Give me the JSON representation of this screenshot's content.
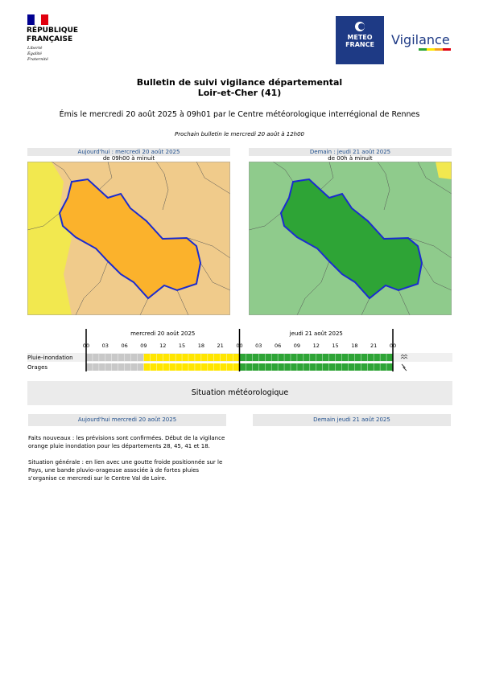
{
  "header": {
    "republique": [
      "RÉPUBLIQUE",
      "FRANÇAISE"
    ],
    "devise": [
      "Liberté",
      "Égalité",
      "Fraternité"
    ],
    "meteo": [
      "METEO",
      "FRANCE"
    ],
    "vigilance": "Vigilance"
  },
  "title": [
    "Bulletin de suivi vigilance départemental",
    "Loir-et-Cher (41)"
  ],
  "emitted": "Émis le mercredi 20 août 2025 à 09h01 par le Centre météorologique interrégional de Rennes",
  "next_bulletin": "Prochain bulletin le mercredi 20 août à 12h00",
  "maps": [
    {
      "title": "Aujourd'hui : mercredi 20 août 2025",
      "period": "de 09h00 à minuit",
      "background": "#f0cb8b",
      "department": "#fbb22c",
      "corner": "#f2e84f"
    },
    {
      "title": "Demain : jeudi 21 août 2025",
      "period": "de 00h à minuit",
      "background": "#8fcb8c",
      "department": "#2ea436",
      "corner": "#f2e84f"
    }
  ],
  "timeline": {
    "days": [
      "mercredi 20 août 2025",
      "jeudi 21 août 2025"
    ],
    "hours": [
      "00",
      "03",
      "06",
      "09",
      "12",
      "15",
      "18",
      "21",
      "00",
      "03",
      "06",
      "09",
      "12",
      "15",
      "18",
      "21",
      "00"
    ],
    "range": [
      0,
      48
    ],
    "rows": [
      {
        "label": "Pluie-inondation",
        "segments": [
          {
            "from": 0,
            "to": 9,
            "color": "#c8c8c8"
          },
          {
            "from": 9,
            "to": 24,
            "color": "#ffe600"
          },
          {
            "from": 24,
            "to": 48,
            "color": "#2ea436"
          }
        ]
      },
      {
        "label": "Orages",
        "segments": [
          {
            "from": 0,
            "to": 9,
            "color": "#c8c8c8"
          },
          {
            "from": 9,
            "to": 24,
            "color": "#ffe600"
          },
          {
            "from": 24,
            "to": 48,
            "color": "#2ea436"
          }
        ]
      }
    ]
  },
  "situation": {
    "title": "Situation météorologique",
    "columns": [
      "Aujourd'hui mercredi 20 août 2025",
      "Demain jeudi 21 août 2025"
    ],
    "paragraphs": [
      "Faits nouveaux : les prévisions sont confirmées. Début de la vigilance orange pluie inondation pour les départements 28, 45, 41 et 18.",
      "Situation générale : en lien avec une goutte froide positionnée sur le Pays, une bande pluvio-orageuse associée à de fortes pluies s'organise ce mercredi sur le Centre Val de Loire."
    ]
  }
}
